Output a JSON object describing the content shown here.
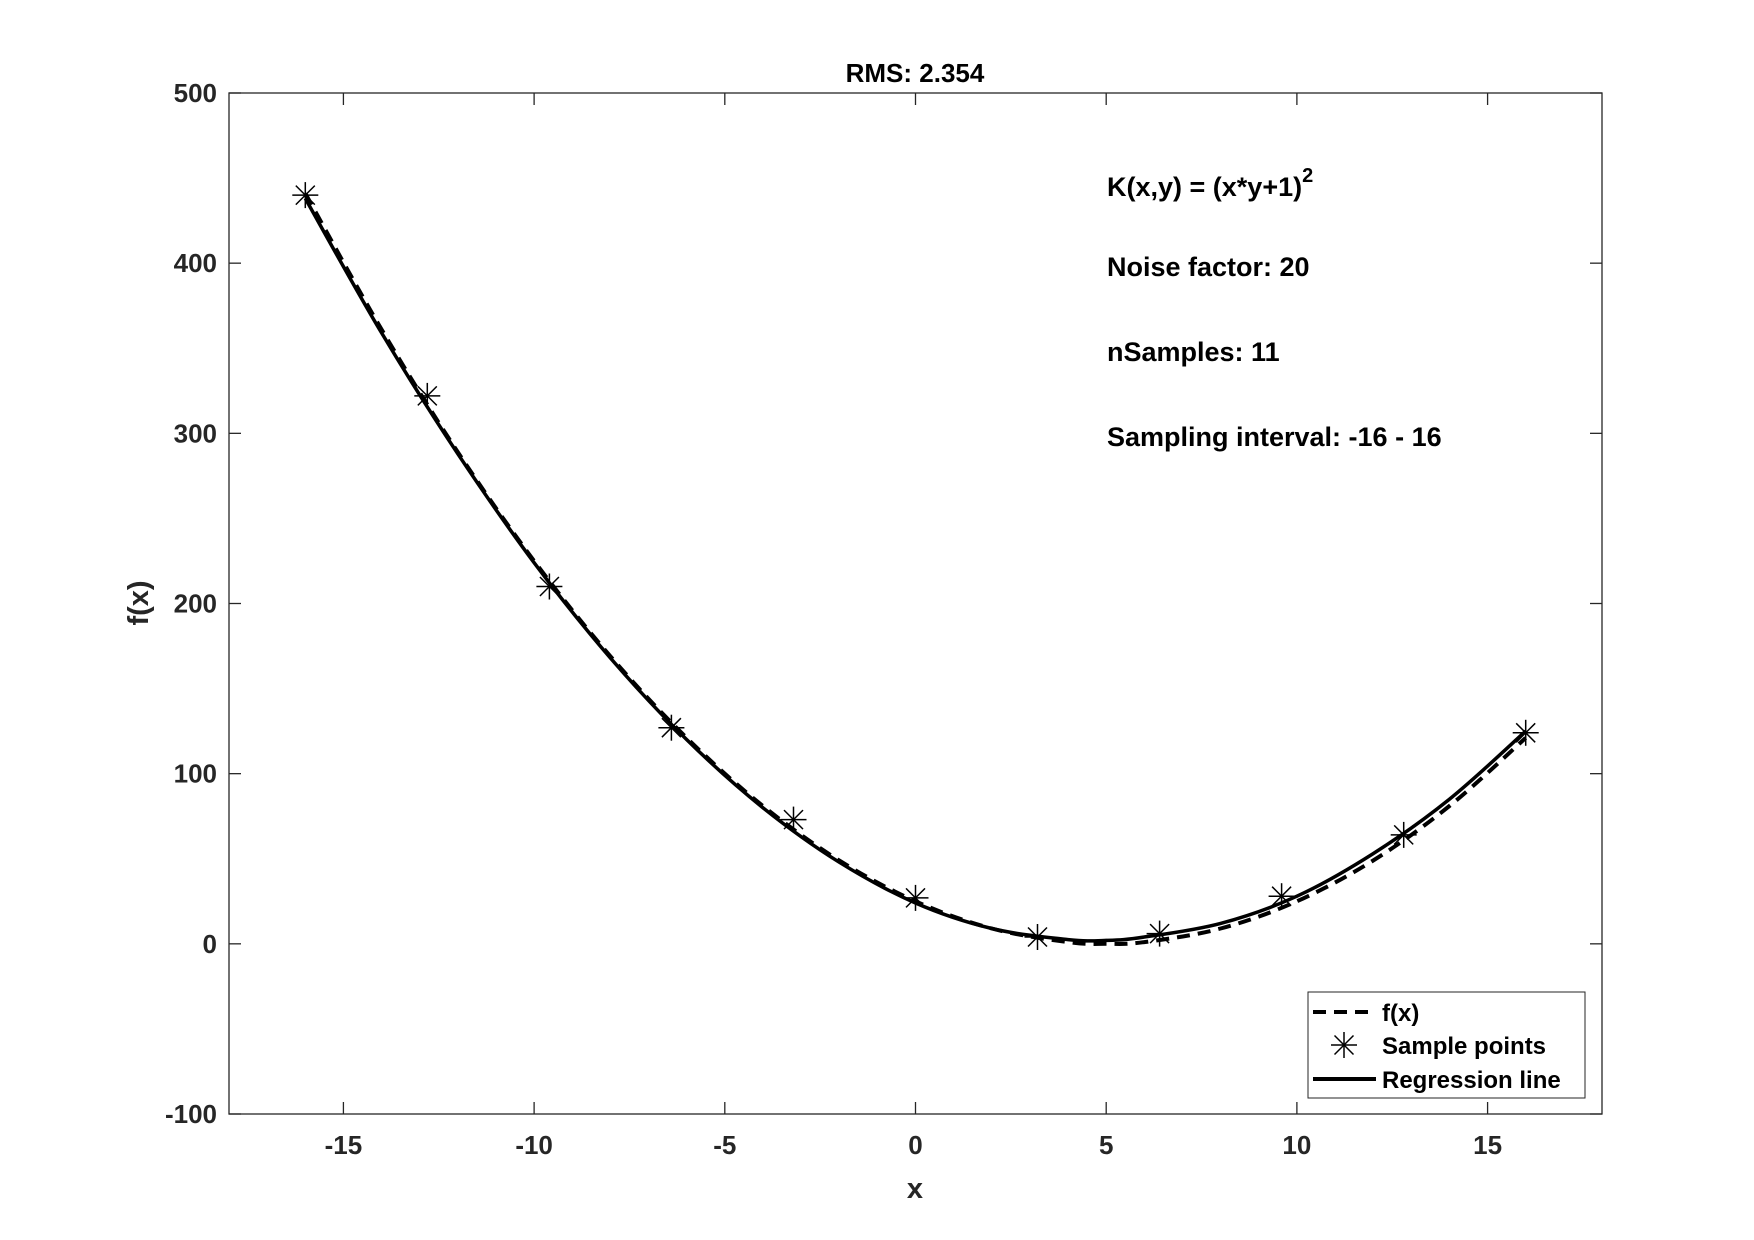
{
  "chart_data": {
    "type": "line",
    "title": "RMS: 2.354",
    "xlabel": "x",
    "ylabel": "f(x)",
    "xlim": [
      -18,
      18
    ],
    "ylim": [
      -100,
      500
    ],
    "xticks": [
      -15,
      -10,
      -5,
      0,
      5,
      10,
      15
    ],
    "yticks": [
      -100,
      0,
      100,
      200,
      300,
      400,
      500
    ],
    "grid": false,
    "legend_position": "bottom-right",
    "annotations": {
      "kernel_prefix": "K(x,y) = (x*y+1)",
      "kernel_exponent": "2",
      "noise": "Noise factor: 20",
      "samples": "nSamples: 11",
      "interval": "Sampling interval: -16 - 16"
    },
    "series": [
      {
        "name": "f(x)",
        "style": "dashed",
        "color": "#000000",
        "x": [
          -16,
          -14,
          -12,
          -10,
          -8,
          -6,
          -4,
          -2,
          0,
          2,
          4,
          5,
          6,
          8,
          10,
          12,
          14,
          16
        ],
        "y": [
          441,
          361,
          289,
          225,
          169,
          121,
          81,
          49,
          25,
          9,
          1,
          0,
          1,
          9,
          25,
          49,
          81,
          121
        ]
      },
      {
        "name": "Sample points",
        "style": "asterisk",
        "color": "#000000",
        "x": [
          -16,
          -12.8,
          -9.6,
          -6.4,
          -3.2,
          0,
          3.2,
          6.4,
          9.6,
          12.8,
          16
        ],
        "y": [
          440,
          322,
          210,
          127,
          73,
          27,
          4,
          6,
          28,
          64,
          124
        ]
      },
      {
        "name": "Regression line",
        "style": "solid",
        "color": "#000000",
        "x": [
          -16,
          -14,
          -12,
          -10,
          -8,
          -6,
          -4,
          -2,
          0,
          2,
          4,
          5,
          6,
          8,
          10,
          12,
          14,
          16
        ],
        "y": [
          438,
          359,
          288,
          224,
          168,
          120,
          80,
          48,
          24,
          9,
          2.5,
          2,
          4,
          12,
          28,
          53,
          85,
          125
        ]
      }
    ]
  }
}
